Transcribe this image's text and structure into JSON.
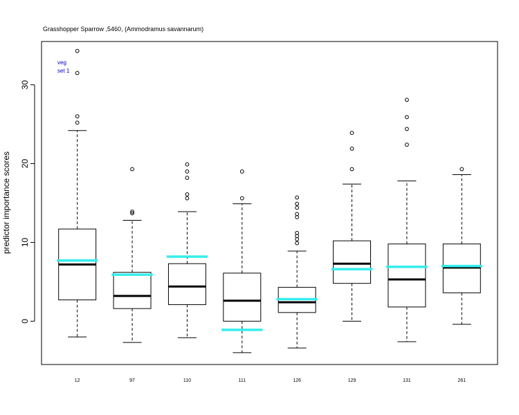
{
  "chart_data": {
    "type": "boxplot",
    "title": "Grasshopper Sparrow ,5460, (Ammodramus savannarum)",
    "xlabel": "",
    "ylabel": "predictor importance scores",
    "ylim": [
      -5.5,
      35.5
    ],
    "yticks": [
      0,
      10,
      20,
      30
    ],
    "legend": {
      "lines": [
        "veg",
        "set 1"
      ],
      "placement": "top-left",
      "color": "#0000cc"
    },
    "box_color": "#000000",
    "median_color": "#000000",
    "marker_color": "#33eeee",
    "categories": [
      "12",
      "97",
      "110",
      "111",
      "126",
      "129",
      "131",
      "261"
    ],
    "boxes": [
      {
        "label": "12",
        "whisker_low": -2.0,
        "q1": 2.7,
        "median": 7.2,
        "q3": 11.7,
        "whisker_high": 24.2,
        "outliers": [
          25.2,
          26.0,
          31.5,
          34.3
        ],
        "marker": 7.7
      },
      {
        "label": "97",
        "whisker_low": -2.7,
        "q1": 1.6,
        "median": 3.2,
        "q3": 6.2,
        "whisker_high": 12.8,
        "outliers": [
          13.7,
          13.9,
          19.3
        ],
        "marker": 5.9
      },
      {
        "label": "110",
        "whisker_low": -2.1,
        "q1": 2.1,
        "median": 4.4,
        "q3": 7.3,
        "whisker_high": 13.9,
        "outliers": [
          15.6,
          16.1,
          18.2,
          19.0,
          19.9
        ],
        "marker": 8.2
      },
      {
        "label": "111",
        "whisker_low": -4.0,
        "q1": 0.0,
        "median": 2.6,
        "q3": 6.1,
        "whisker_high": 14.9,
        "outliers": [
          15.6,
          19.0
        ],
        "marker": -1.1
      },
      {
        "label": "126",
        "whisker_low": -3.4,
        "q1": 1.1,
        "median": 2.4,
        "q3": 4.3,
        "whisker_high": 8.9,
        "outliers": [
          9.9,
          10.4,
          10.8,
          11.2,
          13.2,
          13.6,
          14.4,
          14.9,
          15.7
        ],
        "marker": 2.8
      },
      {
        "label": "129",
        "whisker_low": 0.0,
        "q1": 4.8,
        "median": 7.3,
        "q3": 10.2,
        "whisker_high": 17.4,
        "outliers": [
          19.3,
          21.9,
          23.9
        ],
        "marker": 6.6
      },
      {
        "label": "131",
        "whisker_low": -2.6,
        "q1": 1.8,
        "median": 5.3,
        "q3": 9.8,
        "whisker_high": 17.8,
        "outliers": [
          22.4,
          24.4,
          25.9,
          28.1
        ],
        "marker": 6.9
      },
      {
        "label": "261",
        "whisker_low": -0.4,
        "q1": 3.6,
        "median": 6.8,
        "q3": 9.8,
        "whisker_high": 18.6,
        "outliers": [
          19.3
        ],
        "marker": 7.0
      }
    ]
  }
}
